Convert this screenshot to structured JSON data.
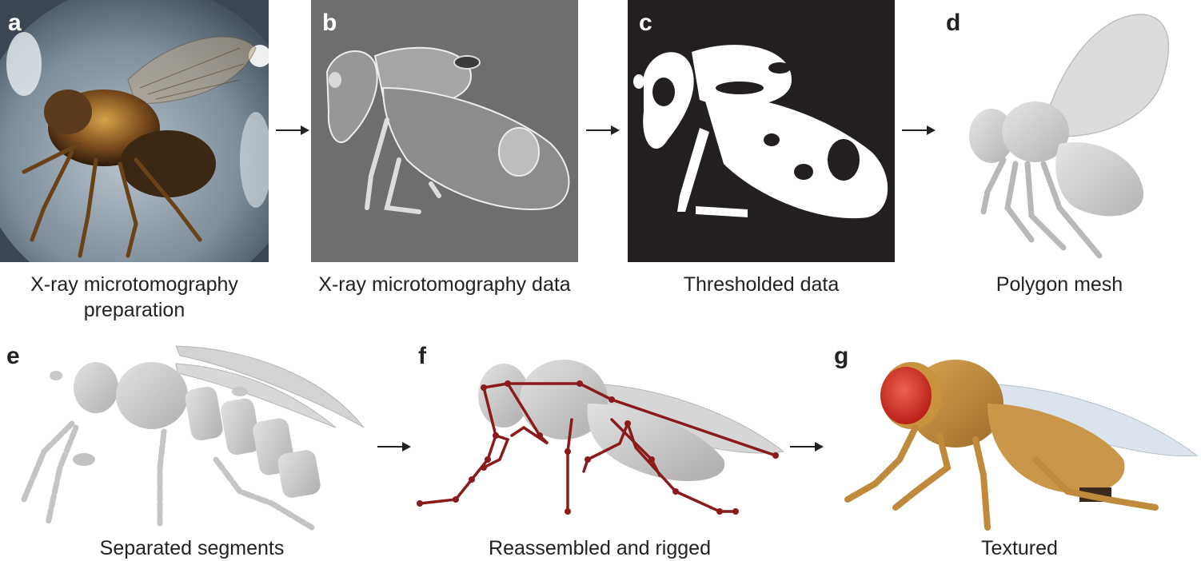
{
  "panels": {
    "a": {
      "letter": "a",
      "caption_line1": "X-ray microtomography",
      "caption_line2": "preparation"
    },
    "b": {
      "letter": "b",
      "caption": "X-ray microtomography data"
    },
    "c": {
      "letter": "c",
      "caption": "Thresholded data"
    },
    "d": {
      "letter": "d",
      "caption": "Polygon mesh"
    },
    "e": {
      "letter": "e",
      "caption": "Separated segments"
    },
    "f": {
      "letter": "f",
      "caption": "Reassembled and rigged"
    },
    "g": {
      "letter": "g",
      "caption": "Textured"
    }
  },
  "colors": {
    "photo_bg": "#8a98a6",
    "ct_bg": "#6e6e6e",
    "threshold_bg": "#231f20",
    "mesh_gray": "#c9c9c9",
    "rig_red": "#8b1a1a",
    "texture_body": "#c8923f",
    "texture_eye": "#d9362a",
    "wing": "#d8e2ea"
  }
}
